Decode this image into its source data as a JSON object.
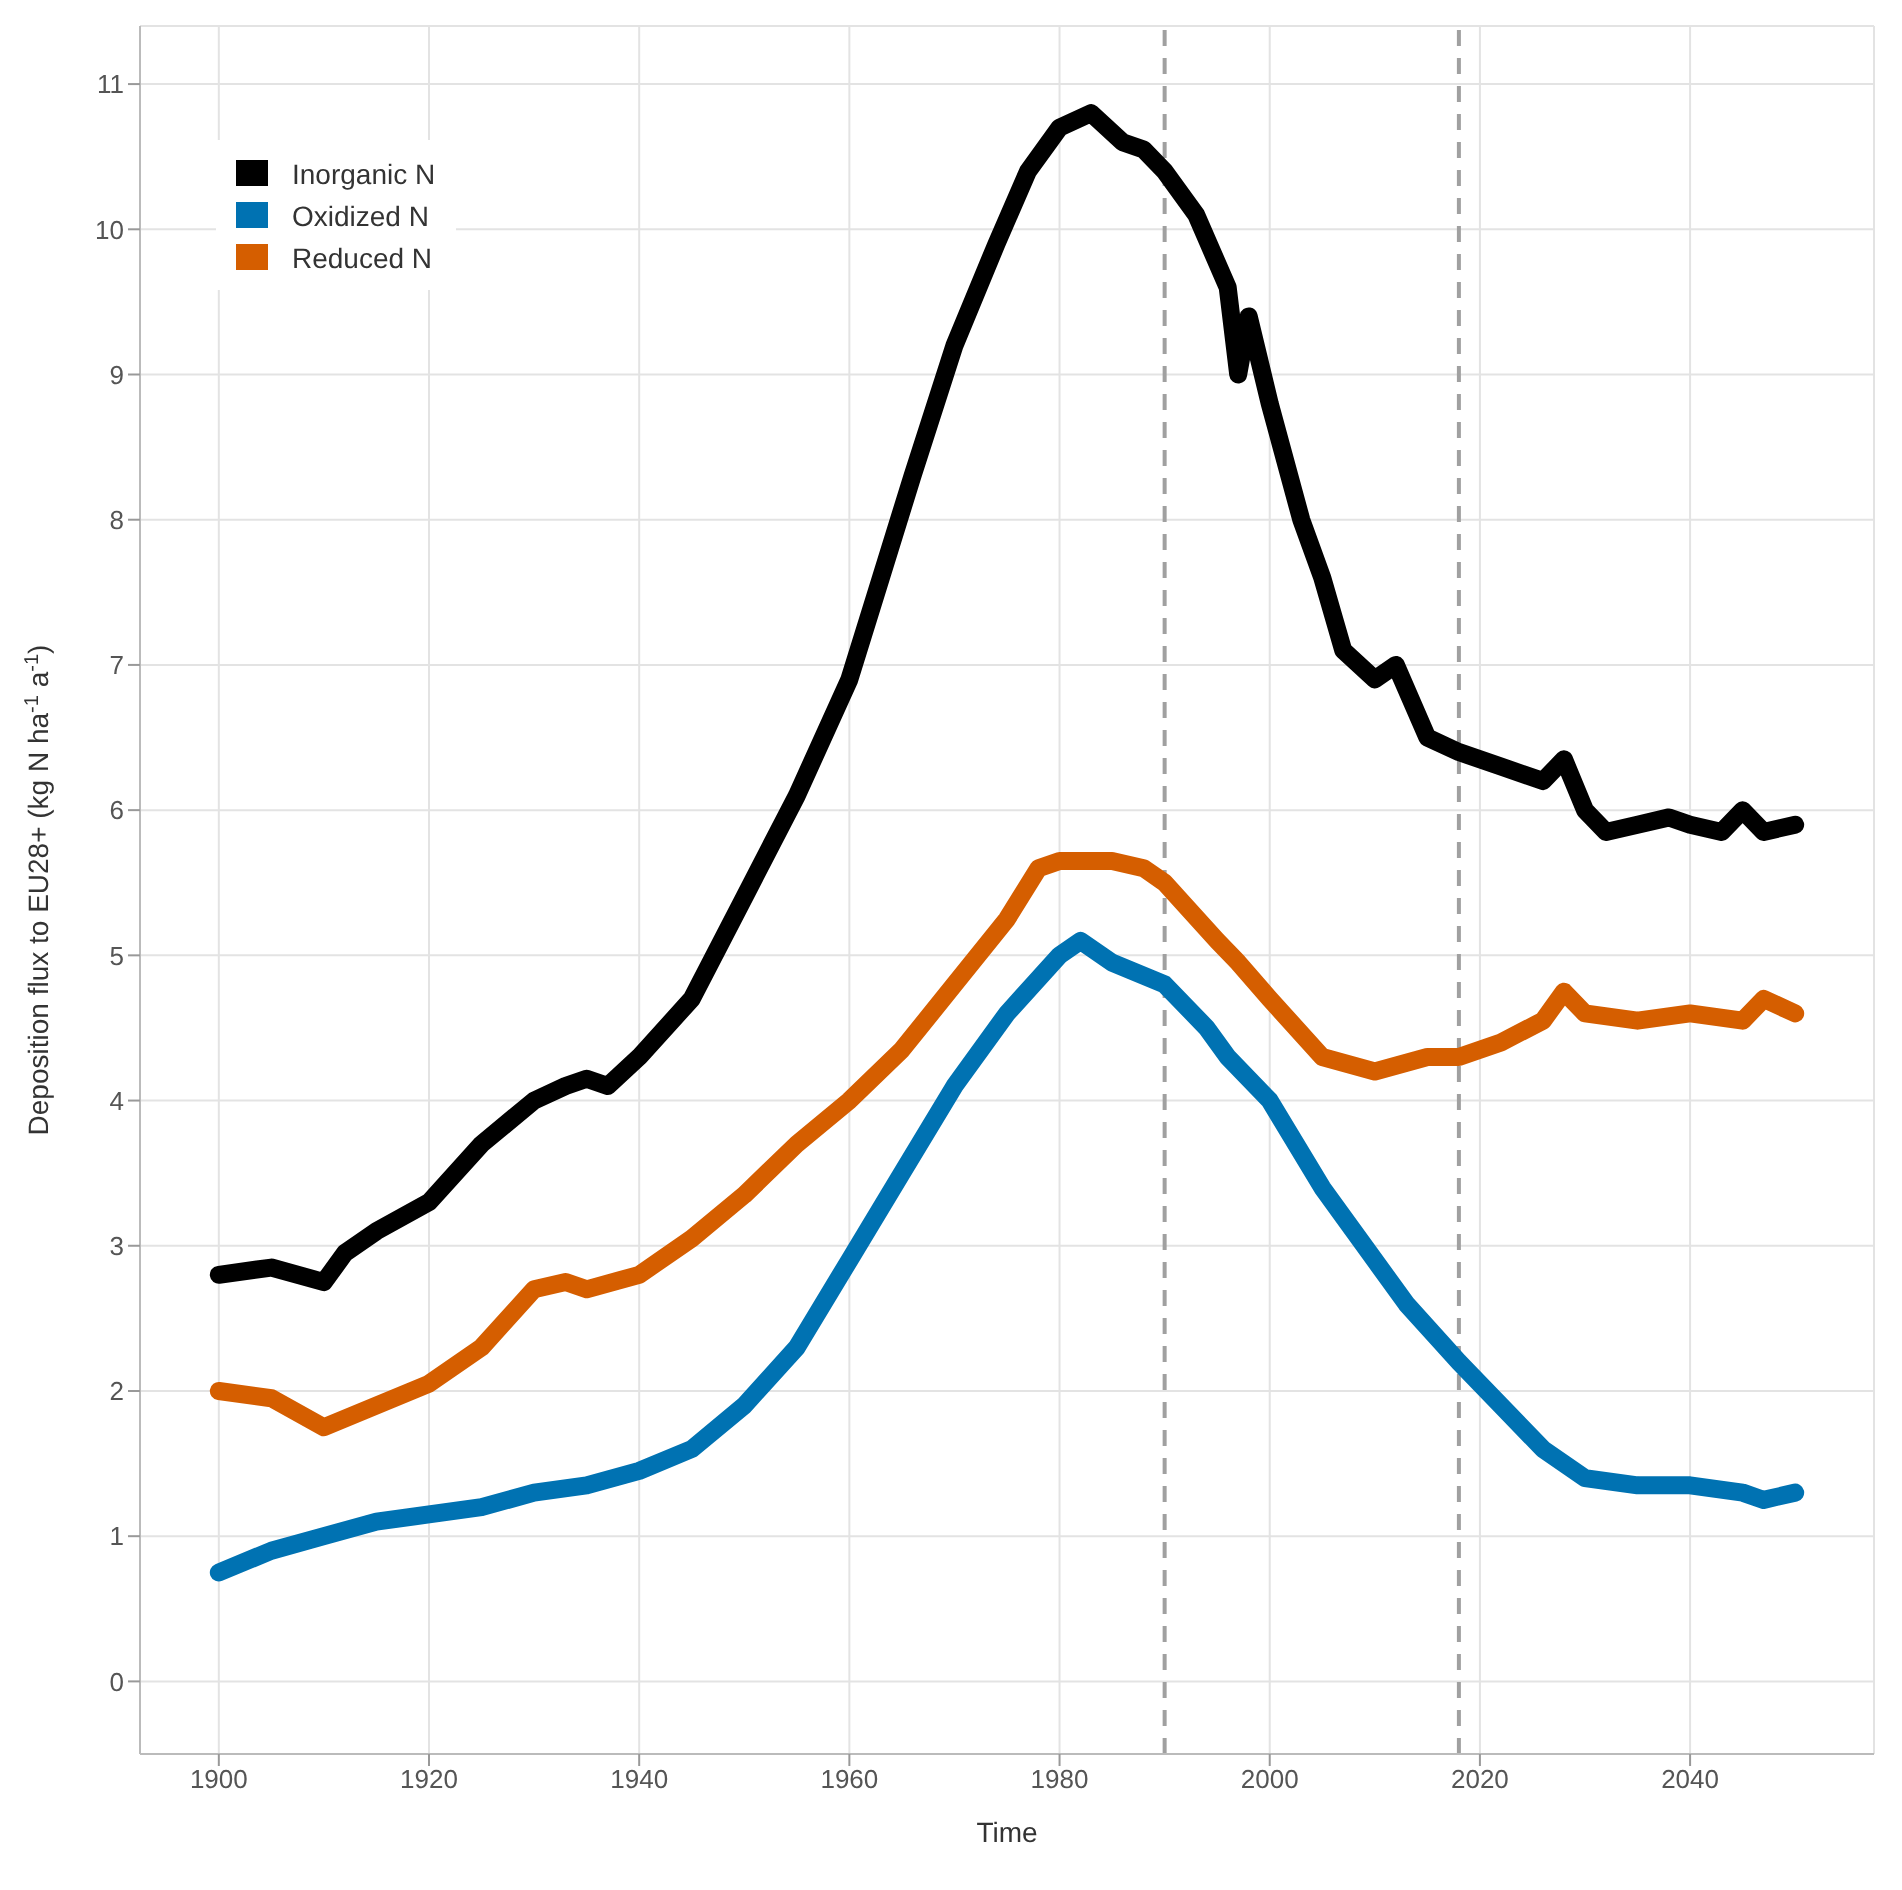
{
  "chart_data": {
    "type": "line",
    "xlabel": "Time",
    "ylabel": "Deposition flux to EU28+ (kg N ha$^{-1}$ a$^{-1}$)",
    "xlim": [
      1892.5,
      2057.5
    ],
    "xticks": [
      1900,
      1920,
      1940,
      1960,
      1980,
      2000,
      2020,
      2040
    ],
    "ylim": [
      -0.5,
      11.4
    ],
    "yticks": [
      0,
      1,
      2,
      3,
      4,
      5,
      6,
      7,
      8,
      9,
      10,
      11
    ],
    "grid": true,
    "legend": "top left",
    "marker": "none",
    "line_style": "solid",
    "ref_lines": [
      {
        "axis": "x",
        "value": 1990,
        "color": "#a0a0a0",
        "line_style": "dashed"
      },
      {
        "axis": "x",
        "value": 2018,
        "color": "#a0a0a0",
        "line_style": "dashed"
      }
    ],
    "series": [
      {
        "name": "Inorganic N",
        "color": "#000000",
        "x": [
          1900,
          1905,
          1910,
          1912,
          1915,
          1920,
          1925,
          1930,
          1933,
          1935,
          1937,
          1940,
          1945,
          1950,
          1955,
          1960,
          1963,
          1966,
          1970,
          1974,
          1977,
          1980,
          1983,
          1986,
          1988,
          1990,
          1993,
          1996,
          1997,
          1998,
          2000,
          2003,
          2005,
          2007,
          2010,
          2012,
          2015,
          2018,
          2022,
          2026,
          2028,
          2030,
          2032,
          2035,
          2038,
          2040,
          2043,
          2045,
          2047,
          2050
        ],
        "values": [
          2.8,
          2.85,
          2.75,
          2.95,
          3.1,
          3.3,
          3.7,
          4.0,
          4.1,
          4.15,
          4.1,
          4.3,
          4.7,
          5.4,
          6.1,
          6.9,
          7.6,
          8.3,
          9.2,
          9.9,
          10.4,
          10.7,
          10.8,
          10.6,
          10.55,
          10.4,
          10.1,
          9.6,
          9.0,
          9.4,
          8.8,
          8.0,
          7.6,
          7.1,
          6.9,
          7.0,
          6.5,
          6.4,
          6.3,
          6.2,
          6.35,
          6.0,
          5.85,
          5.9,
          5.95,
          5.9,
          5.85,
          6.0,
          5.85,
          5.9
        ]
      },
      {
        "name": "Oxidized N",
        "color": "#0072b2",
        "x": [
          1900,
          1905,
          1910,
          1915,
          1920,
          1925,
          1930,
          1935,
          1940,
          1945,
          1950,
          1955,
          1960,
          1965,
          1970,
          1975,
          1980,
          1982,
          1985,
          1990,
          1994,
          1996,
          2000,
          2005,
          2008,
          2010,
          2013,
          2018,
          2022,
          2026,
          2030,
          2035,
          2040,
          2045,
          2047,
          2050
        ],
        "values": [
          0.75,
          0.9,
          1.0,
          1.1,
          1.15,
          1.2,
          1.3,
          1.35,
          1.45,
          1.6,
          1.9,
          2.3,
          2.9,
          3.5,
          4.1,
          4.6,
          5.0,
          5.1,
          4.95,
          4.8,
          4.5,
          4.3,
          4.0,
          3.4,
          3.1,
          2.9,
          2.6,
          2.2,
          1.9,
          1.6,
          1.4,
          1.35,
          1.35,
          1.3,
          1.25,
          1.3
        ]
      },
      {
        "name": "Reduced N",
        "color": "#d55e00",
        "x": [
          1900,
          1905,
          1910,
          1915,
          1920,
          1925,
          1930,
          1933,
          1935,
          1940,
          1945,
          1950,
          1955,
          1960,
          1965,
          1970,
          1975,
          1978,
          1980,
          1985,
          1988,
          1990,
          1995,
          1997,
          2000,
          2005,
          2010,
          2015,
          2018,
          2022,
          2026,
          2028,
          2030,
          2035,
          2040,
          2045,
          2047,
          2050
        ],
        "values": [
          2.0,
          1.95,
          1.75,
          1.9,
          2.05,
          2.3,
          2.7,
          2.75,
          2.7,
          2.8,
          3.05,
          3.35,
          3.7,
          4.0,
          4.35,
          4.8,
          5.25,
          5.6,
          5.65,
          5.65,
          5.6,
          5.5,
          5.1,
          4.95,
          4.7,
          4.3,
          4.2,
          4.3,
          4.3,
          4.4,
          4.55,
          4.75,
          4.6,
          4.55,
          4.6,
          4.55,
          4.7,
          4.6
        ]
      }
    ]
  }
}
